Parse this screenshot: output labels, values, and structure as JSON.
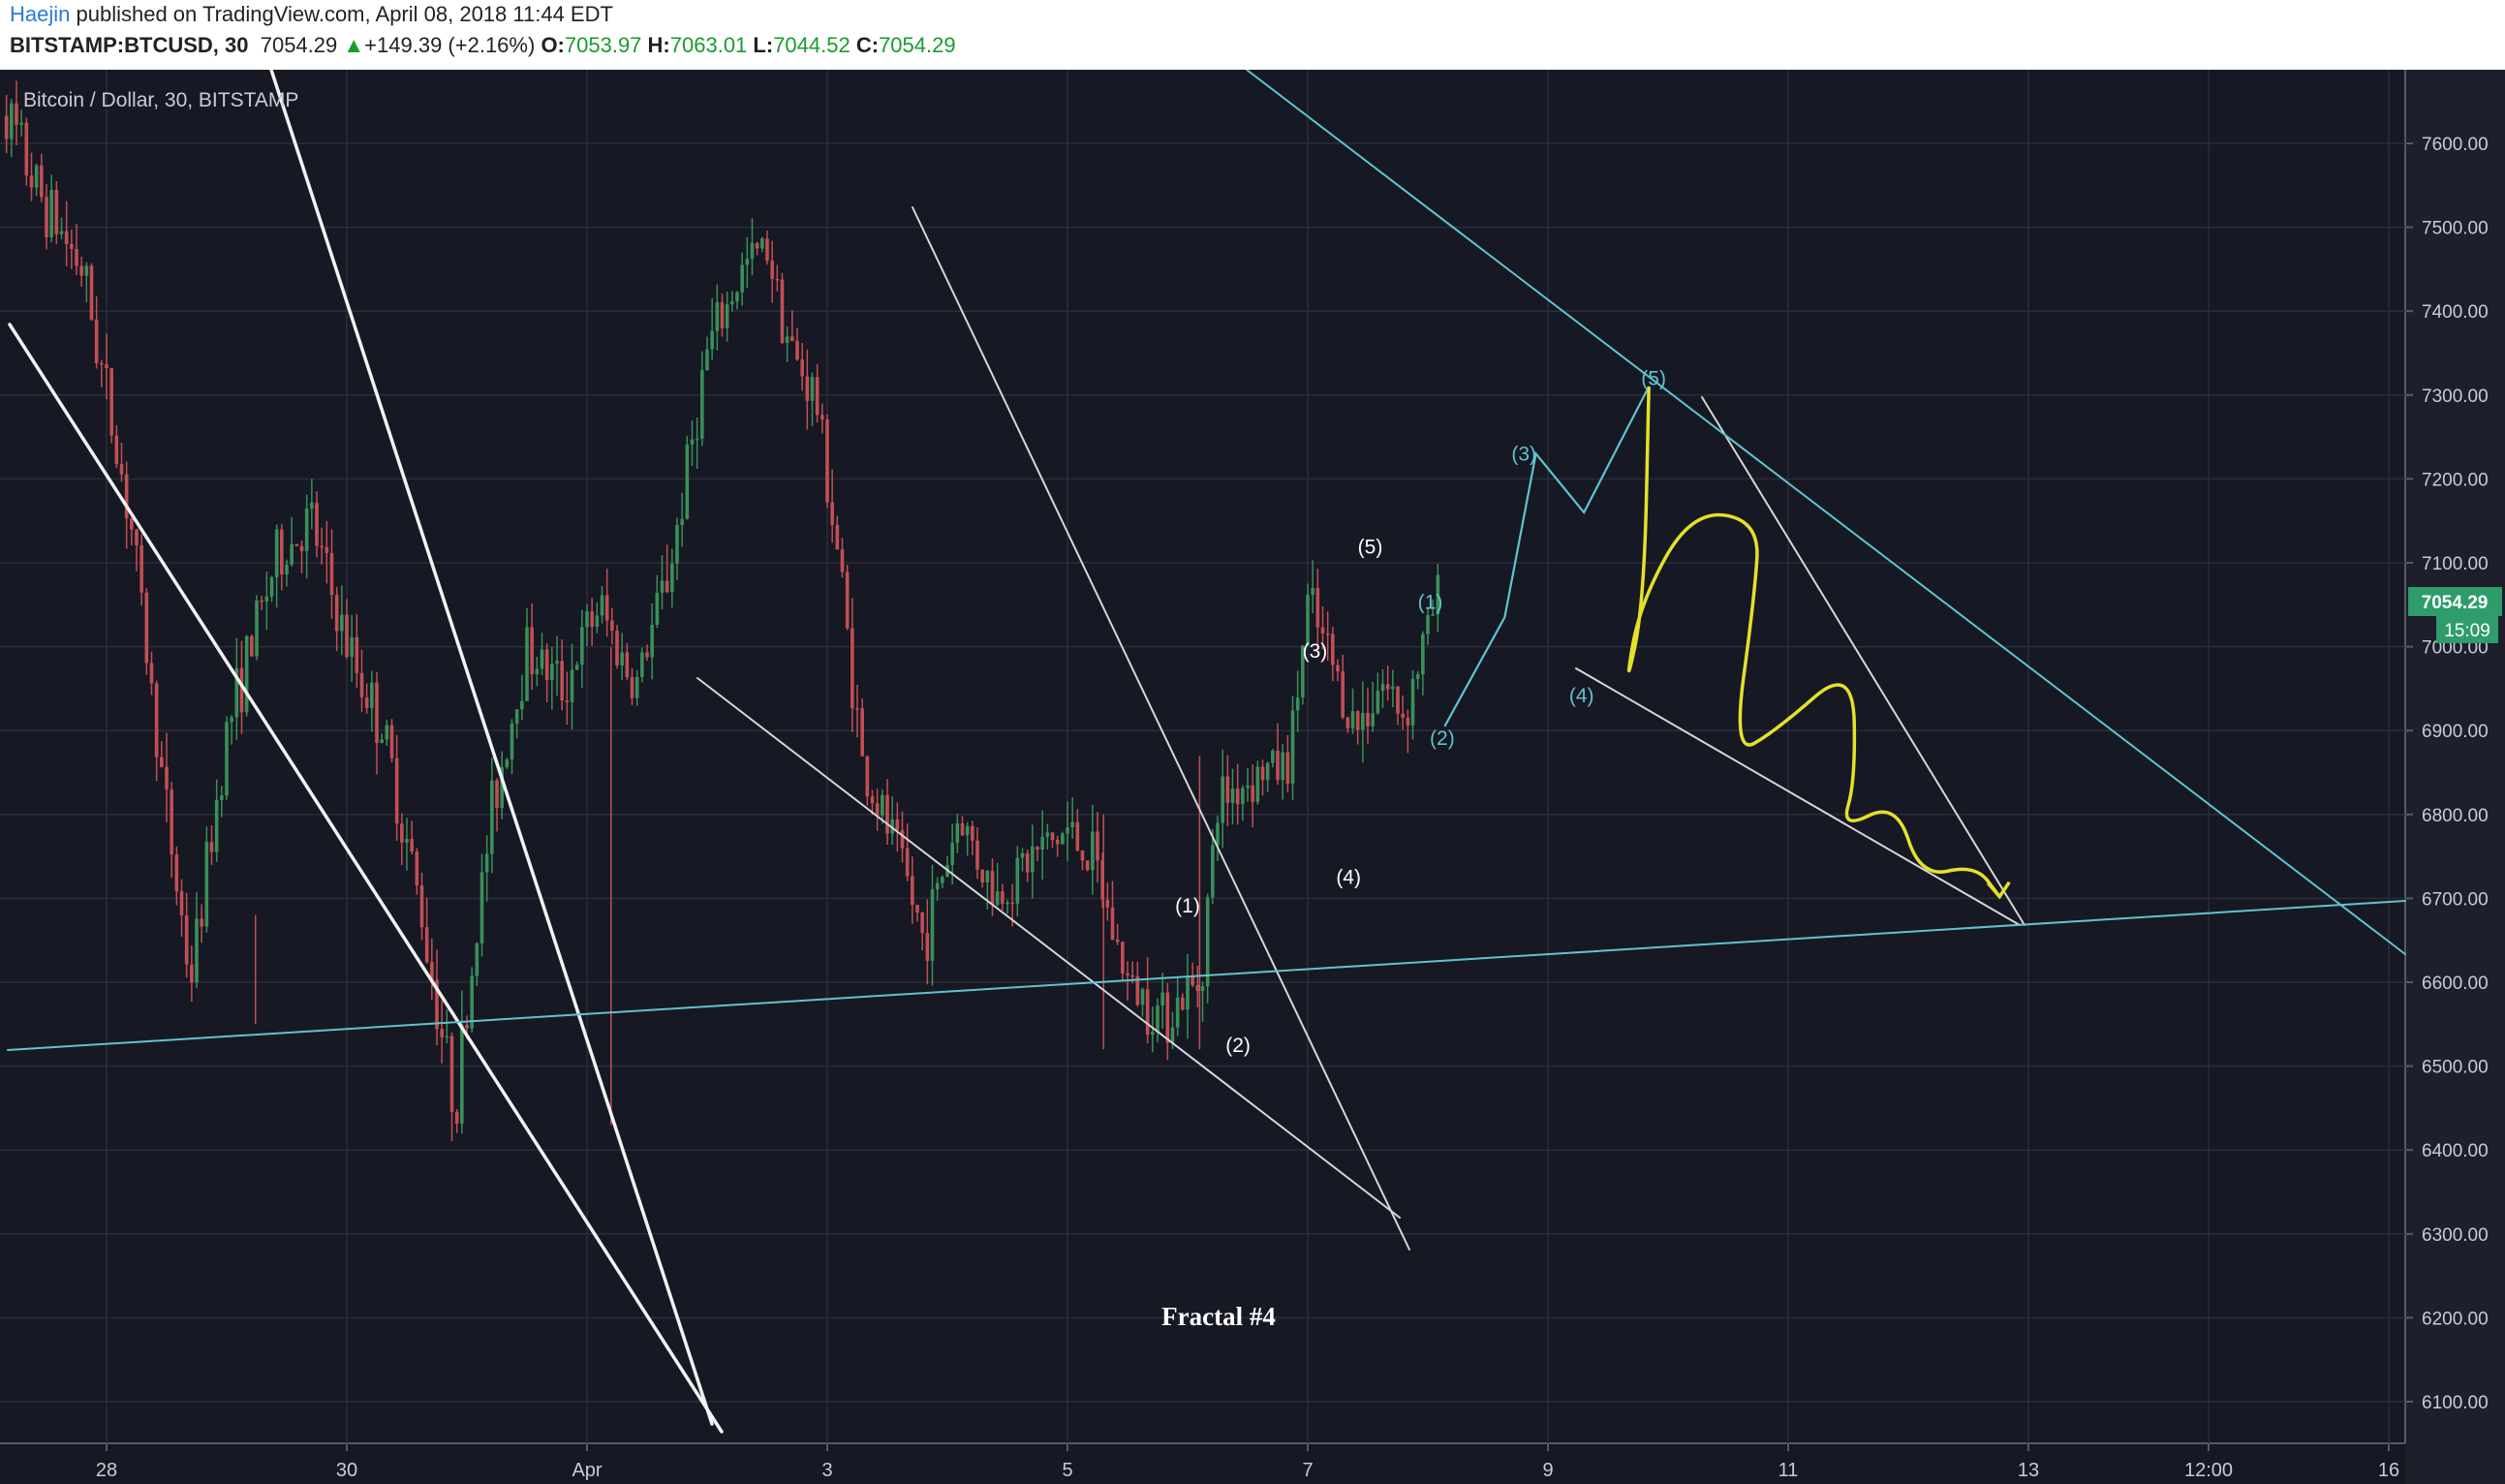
{
  "header": {
    "author": "Haejin",
    "published": "published on TradingView.com, April 08, 2018 11:44 EDT",
    "symbol": "BITSTAMP:BTCUSD, 30",
    "last": "7054.29",
    "change_arrow": "▲",
    "change": "+149.39 (+2.16%)",
    "o_label": "O:",
    "o_value": "7053.97",
    "h_label": "H:",
    "h_value": "7063.01",
    "l_label": "L:",
    "l_value": "7044.52",
    "c_label": "C:",
    "c_value": "7054.29"
  },
  "chart_data": {
    "type": "candlestick",
    "title": "Bitcoin / Dollar, 30, BITSTAMP",
    "annotation": "Fractal #4",
    "ylim": [
      6050,
      7700
    ],
    "y_ticks": [
      "7600.00",
      "7500.00",
      "7400.00",
      "7300.00",
      "7200.00",
      "7100.00",
      "7000.00",
      "6900.00",
      "6800.00",
      "6700.00",
      "6600.00",
      "6500.00",
      "6400.00",
      "6300.00",
      "6200.00",
      "6100.00"
    ],
    "x_ticks": [
      "28",
      "30",
      "Apr",
      "3",
      "5",
      "7",
      "9",
      "11",
      "13",
      "12:00",
      "16"
    ],
    "last_price_label": "7054.29",
    "countdown_label": "15:09",
    "colors": {
      "background": "#161823",
      "grid": "#2a2d3a",
      "up": "#3a8f5a",
      "down": "#c24f55",
      "teal": "#5fc4cf",
      "white": "#e8e8e8",
      "yellow": "#e6e02a",
      "price_tag": "#2e9c6b"
    },
    "price_path": [
      [
        -0.5,
        7700
      ],
      [
        -0.3,
        7550
      ],
      [
        -0.1,
        7450
      ],
      [
        0.1,
        7150
      ],
      [
        0.25,
        6800
      ],
      [
        0.35,
        6600
      ],
      [
        0.5,
        6900
      ],
      [
        0.7,
        7100
      ],
      [
        0.85,
        7150
      ],
      [
        1.0,
        7000
      ],
      [
        1.15,
        6900
      ],
      [
        1.3,
        6700
      ],
      [
        1.45,
        6450
      ],
      [
        1.6,
        6800
      ],
      [
        1.75,
        7000
      ],
      [
        1.9,
        6950
      ],
      [
        2.05,
        7050
      ],
      [
        2.2,
        6950
      ],
      [
        2.35,
        7100
      ],
      [
        2.5,
        7350
      ],
      [
        2.65,
        7450
      ],
      [
        2.75,
        7480
      ],
      [
        2.85,
        7350
      ],
      [
        2.95,
        7300
      ],
      [
        3.05,
        7100
      ],
      [
        3.15,
        6850
      ],
      [
        3.3,
        6750
      ],
      [
        3.4,
        6650
      ],
      [
        3.55,
        6800
      ],
      [
        3.7,
        6700
      ],
      [
        3.85,
        6750
      ],
      [
        4.0,
        6780
      ],
      [
        4.1,
        6750
      ],
      [
        4.25,
        6600
      ],
      [
        4.4,
        6560
      ],
      [
        4.55,
        6600
      ],
      [
        4.63,
        6820
      ],
      [
        4.8,
        6850
      ],
      [
        4.92,
        6860
      ],
      [
        5.0,
        7050
      ],
      [
        5.1,
        6980
      ],
      [
        5.2,
        6900
      ],
      [
        5.3,
        6960
      ],
      [
        5.4,
        6920
      ],
      [
        5.55,
        7070
      ]
    ],
    "wave_labels_white": [
      {
        "text": "(1)",
        "x": 4.5,
        "y": 6683
      },
      {
        "text": "(2)",
        "x": 4.71,
        "y": 6517
      },
      {
        "text": "(3)",
        "x": 5.03,
        "y": 6987
      },
      {
        "text": "(4)",
        "x": 5.17,
        "y": 6717
      },
      {
        "text": "(5)",
        "x": 5.26,
        "y": 7111
      }
    ],
    "wave_labels_teal": [
      {
        "text": "(1)",
        "x": 5.51,
        "y": 7045
      },
      {
        "text": "(2)",
        "x": 5.56,
        "y": 6883
      },
      {
        "text": "(3)",
        "x": 5.9,
        "y": 7222
      },
      {
        "text": "(4)",
        "x": 6.14,
        "y": 6934
      },
      {
        "text": "(5)",
        "x": 6.44,
        "y": 7312
      }
    ],
    "projection_path": [
      [
        5.57,
        6905
      ],
      [
        5.82,
        7035
      ],
      [
        5.95,
        7230
      ],
      [
        6.15,
        7160
      ],
      [
        6.42,
        7310
      ]
    ],
    "yellow_path": [
      [
        6.42,
        7310
      ],
      [
        6.4,
        7050
      ],
      [
        6.32,
        6945
      ],
      [
        6.38,
        7050
      ],
      [
        6.6,
        7163
      ],
      [
        6.88,
        7150
      ],
      [
        6.86,
        7060
      ],
      [
        6.77,
        6870
      ],
      [
        6.95,
        6900
      ],
      [
        7.27,
        6980
      ],
      [
        7.28,
        6840
      ],
      [
        7.22,
        6782
      ],
      [
        7.45,
        6815
      ],
      [
        7.55,
        6725
      ],
      [
        7.78,
        6740
      ],
      [
        7.88,
        6702
      ]
    ]
  }
}
